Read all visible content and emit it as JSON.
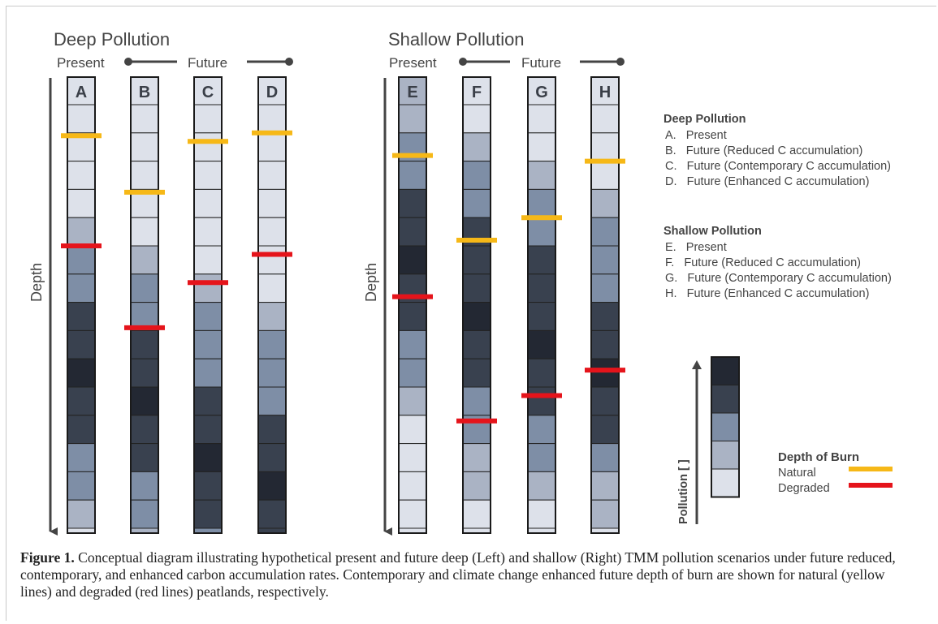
{
  "panels": [
    {
      "title": "Deep Pollution",
      "present_label": "Present",
      "future_label": "Future",
      "depth_label": "Depth",
      "columns": [
        {
          "letter": "A",
          "cells": [
            1,
            1,
            1,
            1,
            2,
            3,
            3,
            4,
            4,
            5,
            4,
            4,
            3,
            3,
            2,
            1,
            1
          ],
          "natural": 1.1,
          "degraded": 5.0
        },
        {
          "letter": "B",
          "cells": [
            1,
            1,
            1,
            1,
            1,
            2,
            3,
            3,
            4,
            4,
            5,
            4,
            4,
            3,
            3,
            2,
            1
          ],
          "natural": 3.1,
          "degraded": 7.9
        },
        {
          "letter": "C",
          "cells": [
            1,
            1,
            1,
            1,
            1,
            1,
            2,
            3,
            3,
            3,
            4,
            4,
            5,
            4,
            4,
            3,
            3,
            2
          ],
          "natural": 1.3,
          "degraded": 6.3
        },
        {
          "letter": "D",
          "cells": [
            1,
            1,
            1,
            1,
            1,
            1,
            1,
            2,
            3,
            3,
            3,
            4,
            4,
            5,
            4,
            4,
            3,
            3
          ],
          "natural": 1.0,
          "degraded": 5.3
        }
      ]
    },
    {
      "title": "Shallow Pollution",
      "present_label": "Present",
      "future_label": "Future",
      "depth_label": "Depth",
      "columns": [
        {
          "letter": "E",
          "cells": [
            2,
            3,
            3,
            4,
            4,
            5,
            4,
            4,
            3,
            3,
            2,
            1,
            1,
            1,
            1,
            1,
            1
          ],
          "natural": 1.8,
          "degraded": 6.8
        },
        {
          "letter": "F",
          "cells": [
            1,
            2,
            3,
            3,
            4,
            4,
            4,
            5,
            4,
            4,
            3,
            3,
            2,
            2,
            1,
            1,
            1
          ],
          "natural": 4.8,
          "degraded": 11.2
        },
        {
          "letter": "G",
          "cells": [
            1,
            1,
            2,
            3,
            3,
            4,
            4,
            4,
            5,
            4,
            4,
            3,
            3,
            2,
            1,
            1,
            1
          ],
          "natural": 4.0,
          "degraded": 10.3
        },
        {
          "letter": "H",
          "cells": [
            1,
            1,
            1,
            2,
            3,
            3,
            3,
            4,
            4,
            5,
            4,
            4,
            3,
            2,
            2,
            1,
            1
          ],
          "natural": 2.0,
          "degraded": 9.4
        }
      ]
    }
  ],
  "legend_scenarios": [
    {
      "heading": "Deep Pollution",
      "items": [
        "A.   Present",
        "B.   Future (Reduced C accumulation)",
        "C.   Future (Contemporary C accumulation)",
        "D.   Future (Enhanced C accumulation)"
      ]
    },
    {
      "heading": "Shallow Pollution",
      "items": [
        "E.   Present",
        "F.   Future (Reduced C accumulation)",
        "G.   Future (Contemporary C accumulation)",
        "H.   Future (Enhanced C accumulation)"
      ]
    }
  ],
  "scale": {
    "label": "Pollution [ ]",
    "levels": [
      5,
      4,
      3,
      2,
      1
    ]
  },
  "burn_legend": {
    "heading": "Depth of Burn",
    "natural_label": "Natural",
    "degraded_label": "Degraded"
  },
  "colors": {
    "level_1": "#dde1ea",
    "level_2": "#aab3c4",
    "level_3": "#7e8ea6",
    "level_4": "#39414f",
    "level_5": "#232833",
    "natural": "#f6b817",
    "degraded": "#e5141b",
    "ink": "#444444"
  },
  "caption": {
    "label": "Figure 1.",
    "text": " Conceptual diagram illustrating hypothetical present and future deep (Left) and shallow (Right) TMM pollution scenarios under future reduced, contemporary, and enhanced carbon accumulation rates. Contemporary and climate change enhanced future depth of burn are shown for natural (yellow lines) and degraded (red lines) peatlands, respectively."
  }
}
